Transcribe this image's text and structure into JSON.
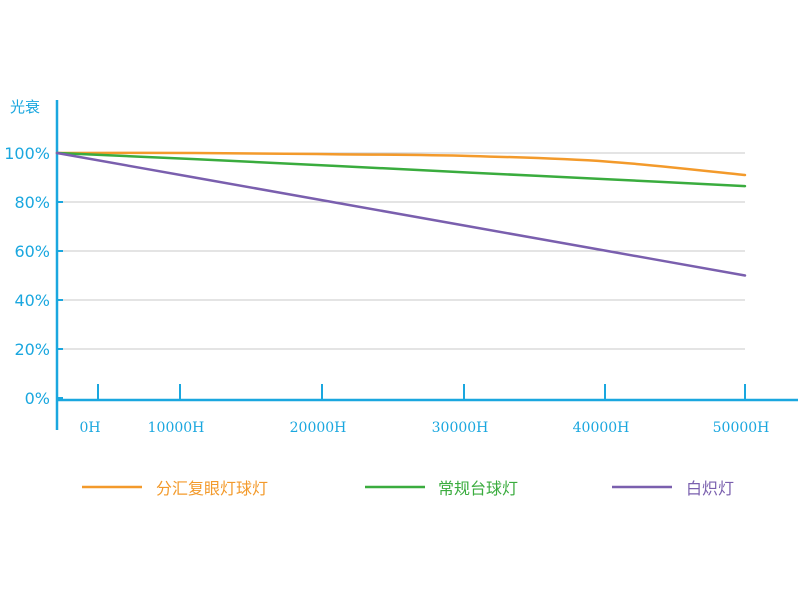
{
  "chart_data": {
    "type": "line",
    "ylabel": "光衰",
    "xlabel": "",
    "x": [
      0,
      10000,
      20000,
      30000,
      40000,
      50000
    ],
    "x_tick_labels": [
      "0H",
      "10000H",
      "20000H",
      "30000H",
      "40000H",
      "50000H"
    ],
    "y_ticks": [
      0,
      20,
      40,
      60,
      80,
      100
    ],
    "y_tick_labels": [
      "0%",
      "20%",
      "40%",
      "60%",
      "80%",
      "100%"
    ],
    "xlim": [
      -3000,
      54000
    ],
    "ylim": [
      0,
      100
    ],
    "grid": true,
    "legend_position": "bottom",
    "series": [
      {
        "name": "分汇复眼灯球灯",
        "color": "#f39a2b",
        "values": [
          100,
          100,
          99.5,
          98.8,
          96.5,
          91
        ]
      },
      {
        "name": "常规台球灯",
        "color": "#3aac3e",
        "values": [
          100,
          97.5,
          94.8,
          92,
          89.3,
          86.5
        ]
      },
      {
        "name": "白炽灯",
        "color": "#7a5fae",
        "values": [
          100,
          90,
          80,
          70,
          60,
          50
        ]
      }
    ]
  },
  "colors": {
    "axis": "#1aa7df",
    "grid": "#c8c8c8"
  }
}
